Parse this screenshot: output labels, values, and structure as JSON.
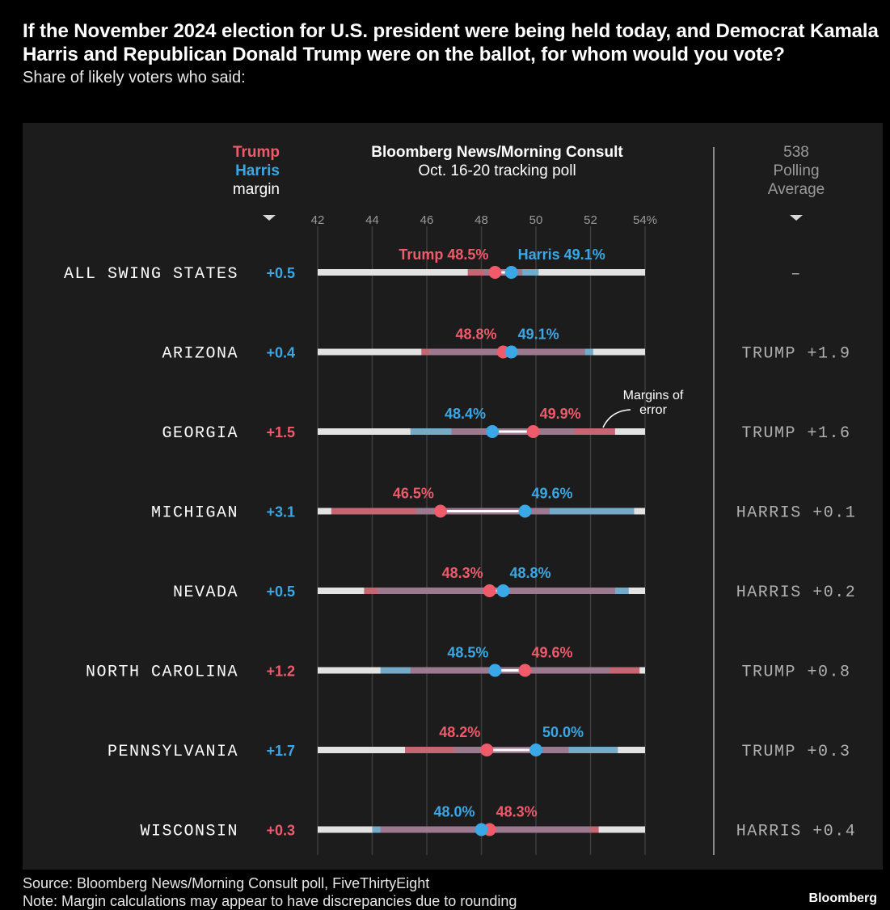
{
  "title": "If the November 2024 election for U.S. president were being held today, and Democrat Kamala Harris and Republican Donald Trump were on the ballot, for whom would you vote?",
  "subtitle": "Share of likely voters who said:",
  "colors": {
    "trump": "#ef5b6b",
    "harris": "#3aa8e6",
    "trump_moe": "#c25a66",
    "harris_moe": "#6aa4c6",
    "overlap": "#9b7a8f",
    "track": "#e2e2e2",
    "panel": "#1c1c1c",
    "muted": "#9a9a9a"
  },
  "legend": {
    "trump": "Trump",
    "harris": "Harris",
    "margin": "margin"
  },
  "poll_header": {
    "line1": "Bloomberg News/Morning Consult",
    "line2": "Oct. 16-20 tracking poll"
  },
  "avg_header": {
    "line1": "538",
    "line2": "Polling",
    "line3": "Average"
  },
  "annotation": {
    "line1": "Margins of",
    "line2": "error"
  },
  "chart_data": {
    "type": "dot",
    "xlim": [
      42,
      54
    ],
    "ticks": [
      "42",
      "44",
      "46",
      "48",
      "50",
      "52",
      "54%"
    ],
    "tick_values": [
      42,
      44,
      46,
      48,
      50,
      52,
      54
    ],
    "series": [
      {
        "name": "Trump"
      },
      {
        "name": "Harris"
      }
    ],
    "rows": [
      {
        "state": "ALL SWING STATES",
        "margin": "+0.5",
        "leader": "harris",
        "trump": 48.5,
        "harris": 49.1,
        "trump_label": "Trump 48.5%",
        "harris_label": "Harris 49.1%",
        "trump_moe": [
          47.5,
          49.5
        ],
        "harris_moe": [
          48.1,
          50.1
        ],
        "avg": "–"
      },
      {
        "state": "ARIZONA",
        "margin": "+0.4",
        "leader": "harris",
        "trump": 48.8,
        "harris": 49.1,
        "trump_label": "48.8%",
        "harris_label": "49.1%",
        "trump_moe": [
          45.8,
          51.8
        ],
        "harris_moe": [
          46.1,
          52.1
        ],
        "avg": "TRUMP +1.9"
      },
      {
        "state": "GEORGIA",
        "margin": "+1.5",
        "leader": "trump",
        "trump": 49.9,
        "harris": 48.4,
        "trump_label": "49.9%",
        "harris_label": "48.4%",
        "trump_moe": [
          46.9,
          52.9
        ],
        "harris_moe": [
          45.4,
          51.4
        ],
        "avg": "TRUMP +1.6"
      },
      {
        "state": "MICHIGAN",
        "margin": "+3.1",
        "leader": "harris",
        "trump": 46.5,
        "harris": 49.6,
        "trump_label": "46.5%",
        "harris_label": "49.6%",
        "trump_moe": [
          42.5,
          50.5
        ],
        "harris_moe": [
          45.6,
          53.6
        ],
        "avg": "HARRIS +0.1"
      },
      {
        "state": "NEVADA",
        "margin": "+0.5",
        "leader": "harris",
        "trump": 48.3,
        "harris": 48.8,
        "trump_label": "48.3%",
        "harris_label": "48.8%",
        "trump_moe": [
          43.7,
          52.9
        ],
        "harris_moe": [
          44.2,
          53.4
        ],
        "avg": "HARRIS +0.2"
      },
      {
        "state": "NORTH CAROLINA",
        "margin": "+1.2",
        "leader": "trump",
        "trump": 49.6,
        "harris": 48.5,
        "trump_label": "49.6%",
        "harris_label": "48.5%",
        "trump_moe": [
          45.4,
          53.8
        ],
        "harris_moe": [
          44.3,
          52.7
        ],
        "avg": "TRUMP +0.8"
      },
      {
        "state": "PENNSYLVANIA",
        "margin": "+1.7",
        "leader": "harris",
        "trump": 48.2,
        "harris": 50.0,
        "trump_label": "48.2%",
        "harris_label": "50.0%",
        "trump_moe": [
          45.2,
          51.2
        ],
        "harris_moe": [
          47.0,
          53.0
        ],
        "avg": "TRUMP +0.3"
      },
      {
        "state": "WISCONSIN",
        "margin": "+0.3",
        "leader": "trump",
        "trump": 48.3,
        "harris": 48.0,
        "trump_label": "48.3%",
        "harris_label": "48.0%",
        "trump_moe": [
          44.3,
          52.3
        ],
        "harris_moe": [
          44.0,
          52.0
        ],
        "avg": "HARRIS +0.4"
      }
    ]
  },
  "footer": {
    "source": "Source: Bloomberg News/Morning Consult poll, FiveThirtyEight",
    "note": "Note: Margin calculations may appear to have discrepancies due to rounding",
    "brand": "Bloomberg"
  }
}
